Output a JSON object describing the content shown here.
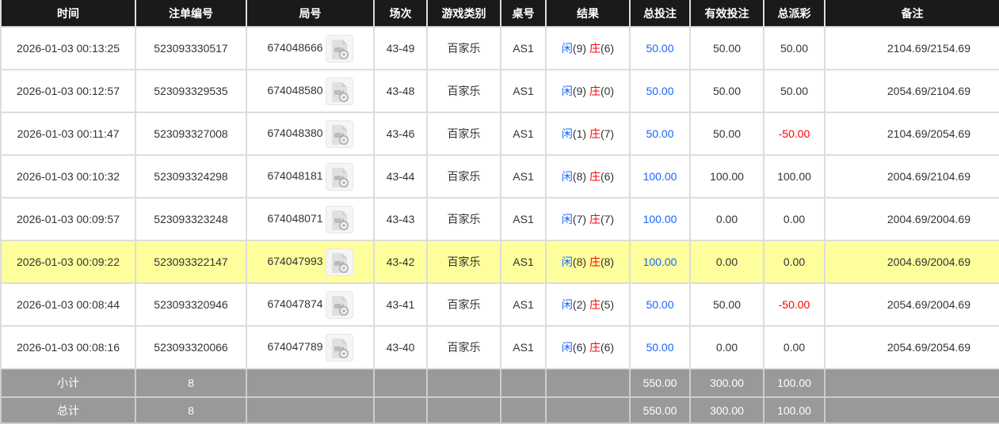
{
  "headers": [
    "时间",
    "注单编号",
    "局号",
    "场次",
    "游戏类别",
    "桌号",
    "结果",
    "总投注",
    "有效投注",
    "总派彩",
    "备注"
  ],
  "rows": [
    {
      "time": "2026-01-03 00:13:25",
      "bet_id": "523093330517",
      "round": "674048666",
      "session": "43-49",
      "game": "百家乐",
      "table": "AS1",
      "player": "闲",
      "player_score": "(9)",
      "banker": "庄",
      "banker_score": "(6)",
      "total_bet": "50.00",
      "valid_bet": "50.00",
      "payout": "50.00",
      "payout_negative": false,
      "memo": "2104.69/2154.69"
    },
    {
      "time": "2026-01-03 00:12:57",
      "bet_id": "523093329535",
      "round": "674048580",
      "session": "43-48",
      "game": "百家乐",
      "table": "AS1",
      "player": "闲",
      "player_score": "(9)",
      "banker": "庄",
      "banker_score": "(0)",
      "total_bet": "50.00",
      "valid_bet": "50.00",
      "payout": "50.00",
      "payout_negative": false,
      "memo": "2054.69/2104.69"
    },
    {
      "time": "2026-01-03 00:11:47",
      "bet_id": "523093327008",
      "round": "674048380",
      "session": "43-46",
      "game": "百家乐",
      "table": "AS1",
      "player": "闲",
      "player_score": "(1)",
      "banker": "庄",
      "banker_score": "(7)",
      "total_bet": "50.00",
      "valid_bet": "50.00",
      "payout": "-50.00",
      "payout_negative": true,
      "memo": "2104.69/2054.69"
    },
    {
      "time": "2026-01-03 00:10:32",
      "bet_id": "523093324298",
      "round": "674048181",
      "session": "43-44",
      "game": "百家乐",
      "table": "AS1",
      "player": "闲",
      "player_score": "(8)",
      "banker": "庄",
      "banker_score": "(6)",
      "total_bet": "100.00",
      "valid_bet": "100.00",
      "payout": "100.00",
      "payout_negative": false,
      "memo": "2004.69/2104.69"
    },
    {
      "time": "2026-01-03 00:09:57",
      "bet_id": "523093323248",
      "round": "674048071",
      "session": "43-43",
      "game": "百家乐",
      "table": "AS1",
      "player": "闲",
      "player_score": "(7)",
      "banker": "庄",
      "banker_score": "(7)",
      "total_bet": "100.00",
      "valid_bet": "0.00",
      "payout": "0.00",
      "payout_negative": false,
      "memo": "2004.69/2004.69"
    },
    {
      "time": "2026-01-03 00:09:22",
      "bet_id": "523093322147",
      "round": "674047993",
      "session": "43-42",
      "game": "百家乐",
      "table": "AS1",
      "player": "闲",
      "player_score": "(8)",
      "banker": "庄",
      "banker_score": "(8)",
      "total_bet": "100.00",
      "valid_bet": "0.00",
      "payout": "0.00",
      "payout_negative": false,
      "memo": "2004.69/2004.69",
      "highlighted": true
    },
    {
      "time": "2026-01-03 00:08:44",
      "bet_id": "523093320946",
      "round": "674047874",
      "session": "43-41",
      "game": "百家乐",
      "table": "AS1",
      "player": "闲",
      "player_score": "(2)",
      "banker": "庄",
      "banker_score": "(5)",
      "total_bet": "50.00",
      "valid_bet": "50.00",
      "payout": "-50.00",
      "payout_negative": true,
      "memo": "2054.69/2004.69"
    },
    {
      "time": "2026-01-03 00:08:16",
      "bet_id": "523093320066",
      "round": "674047789",
      "session": "43-40",
      "game": "百家乐",
      "table": "AS1",
      "player": "闲",
      "player_score": "(6)",
      "banker": "庄",
      "banker_score": "(6)",
      "total_bet": "50.00",
      "valid_bet": "0.00",
      "payout": "0.00",
      "payout_negative": false,
      "memo": "2054.69/2054.69"
    }
  ],
  "subtotal": {
    "label": "小计",
    "count": "8",
    "total_bet": "550.00",
    "valid_bet": "300.00",
    "payout": "100.00"
  },
  "total": {
    "label": "总计",
    "count": "8",
    "total_bet": "550.00",
    "valid_bet": "300.00",
    "payout": "100.00"
  },
  "colors": {
    "header_bg": "#1a1a1a",
    "highlight": "#fefe9c",
    "summary_bg": "#999999",
    "blue": "#1a66ff",
    "red": "#ff0000"
  },
  "icons": {
    "replay": "video-file-icon"
  }
}
